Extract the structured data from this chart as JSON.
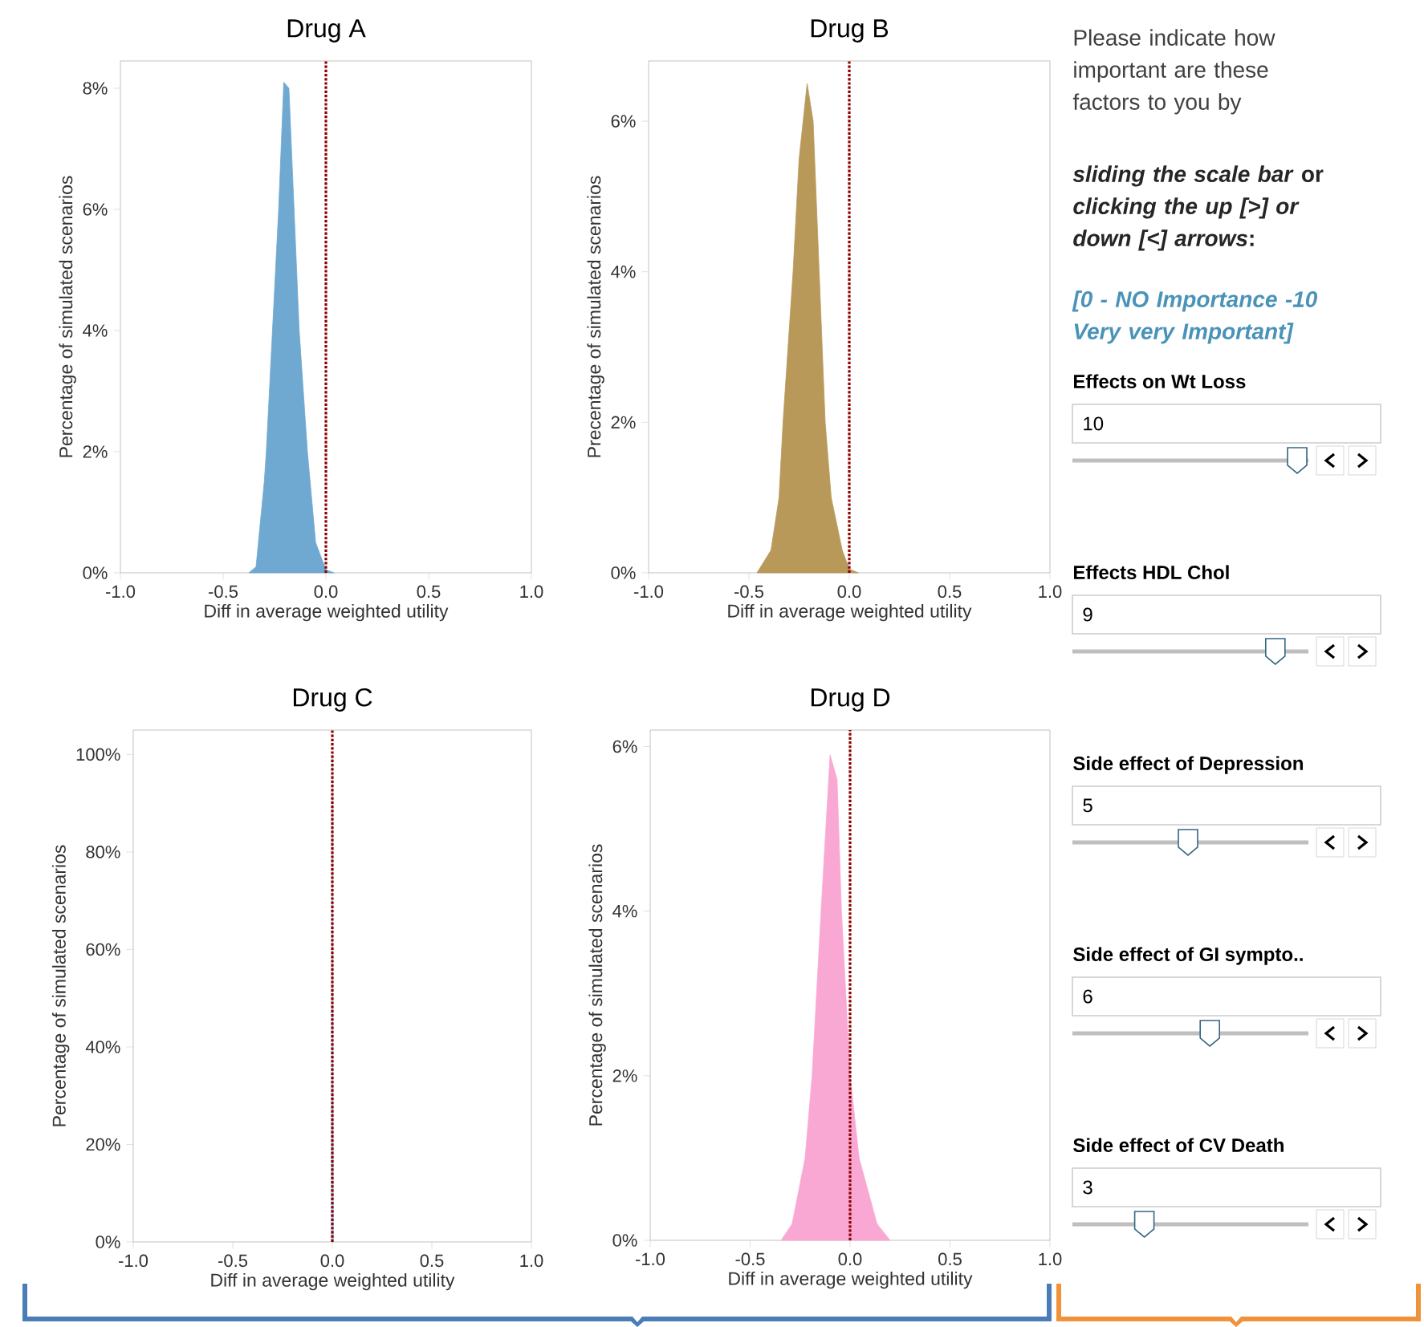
{
  "chart_data": [
    {
      "type": "area",
      "title": "Drug A",
      "xlabel": "Diff in average weighted utility",
      "ylabel": "Percentage of simulated scenarios",
      "x": [
        -0.375,
        -0.34,
        -0.3,
        -0.29,
        -0.26,
        -0.23,
        -0.205,
        -0.18,
        -0.155,
        -0.13,
        -0.09,
        -0.05,
        0.0,
        0.04
      ],
      "series": [
        {
          "color": "#6fa8d0",
          "values": [
            0,
            0.1,
            1.5,
            2,
            4,
            6,
            8.1,
            8.0,
            6,
            4,
            2,
            0.5,
            0.05,
            0
          ]
        }
      ],
      "xlim": [
        -1,
        1
      ],
      "ylim": [
        0,
        8.45
      ],
      "xticks": [
        {
          "value": -1,
          "label": "-1.0"
        },
        {
          "value": -0.5,
          "label": "-0.5"
        },
        {
          "value": 0,
          "label": "0.0"
        },
        {
          "value": 0.5,
          "label": "0.5"
        },
        {
          "value": 1,
          "label": "1.0"
        }
      ],
      "yticks": [
        {
          "value": 0,
          "label": "0%"
        },
        {
          "value": 2,
          "label": "2%"
        },
        {
          "value": 4,
          "label": "4%"
        },
        {
          "value": 6,
          "label": "6%"
        },
        {
          "value": 8,
          "label": "8%"
        }
      ],
      "ref_lines": [
        {
          "axis": "x",
          "value": 0,
          "color": "#8b0000",
          "line_style": "dotted"
        }
      ]
    },
    {
      "type": "area",
      "title": "Drug B",
      "xlabel": "Diff in average weighted utility",
      "ylabel": "Precentage of simulated scenarios",
      "x": [
        -0.46,
        -0.39,
        -0.35,
        -0.33,
        -0.28,
        -0.25,
        -0.21,
        -0.18,
        -0.15,
        -0.12,
        -0.09,
        -0.035,
        0.0,
        0.045
      ],
      "series": [
        {
          "color": "#b8995a",
          "values": [
            0,
            0.3,
            1,
            2,
            4,
            5.5,
            6.5,
            6,
            4,
            2,
            1,
            0.3,
            0.05,
            0
          ]
        }
      ],
      "xlim": [
        -1,
        1
      ],
      "ylim": [
        0,
        6.8
      ],
      "xticks": [
        {
          "value": -1,
          "label": "-1.0"
        },
        {
          "value": -0.5,
          "label": "-0.5"
        },
        {
          "value": 0,
          "label": "0.0"
        },
        {
          "value": 0.5,
          "label": "0.5"
        },
        {
          "value": 1,
          "label": "1.0"
        }
      ],
      "yticks": [
        {
          "value": 0,
          "label": "0%"
        },
        {
          "value": 2,
          "label": "2%"
        },
        {
          "value": 4,
          "label": "4%"
        },
        {
          "value": 6,
          "label": "6%"
        }
      ],
      "ref_lines": [
        {
          "axis": "x",
          "value": 0,
          "color": "#8b0000",
          "line_style": "dotted"
        }
      ]
    },
    {
      "type": "area",
      "title": "Drug C",
      "xlabel": "Diff in average weighted utility",
      "ylabel": "Percentage of simulated scenarios",
      "x": [
        -0.005,
        0,
        0.005
      ],
      "series": [
        {
          "color": "#aac8e4",
          "values": [
            0,
            100,
            0
          ]
        }
      ],
      "xlim": [
        -1,
        1
      ],
      "ylim": [
        0,
        105
      ],
      "xticks": [
        {
          "value": -1,
          "label": "-1.0"
        },
        {
          "value": -0.5,
          "label": "-0.5"
        },
        {
          "value": 0,
          "label": "0.0"
        },
        {
          "value": 0.5,
          "label": "0.5"
        },
        {
          "value": 1,
          "label": "1.0"
        }
      ],
      "yticks": [
        {
          "value": 0,
          "label": "0%"
        },
        {
          "value": 20,
          "label": "20%"
        },
        {
          "value": 40,
          "label": "40%"
        },
        {
          "value": 60,
          "label": "60%"
        },
        {
          "value": 80,
          "label": "80%"
        },
        {
          "value": 100,
          "label": "100%"
        }
      ],
      "ref_lines": [
        {
          "axis": "x",
          "value": 0,
          "color": "#8b0000",
          "line_style": "dotted"
        }
      ]
    },
    {
      "type": "area",
      "title": "Drug D",
      "xlabel": "Diff in average weighted utility",
      "ylabel": "Percentage of simulated scenarios",
      "x": [
        -0.345,
        -0.29,
        -0.225,
        -0.19,
        -0.145,
        -0.1,
        -0.065,
        -0.043,
        0.0,
        0.045,
        0.135,
        0.2
      ],
      "series": [
        {
          "color": "#f9a8d4",
          "values": [
            0,
            0.2,
            1,
            2,
            4,
            5.9,
            5.6,
            4,
            2,
            1,
            0.2,
            0
          ]
        }
      ],
      "xlim": [
        -1,
        1
      ],
      "ylim": [
        0,
        6.2
      ],
      "xticks": [
        {
          "value": -1,
          "label": "-1.0"
        },
        {
          "value": -0.5,
          "label": "-0.5"
        },
        {
          "value": 0,
          "label": "0.0"
        },
        {
          "value": 0.5,
          "label": "0.5"
        },
        {
          "value": 1,
          "label": "1.0"
        }
      ],
      "yticks": [
        {
          "value": 0,
          "label": "0%"
        },
        {
          "value": 2,
          "label": "2%"
        },
        {
          "value": 4,
          "label": "4%"
        },
        {
          "value": 6,
          "label": "6%"
        }
      ],
      "ref_lines": [
        {
          "axis": "x",
          "value": 0,
          "color": "#8b0000",
          "line_style": "dotted"
        }
      ]
    },
    {
      "type": "other",
      "title": "Please indicate how important are these factors to you by",
      "annotations": [
        "*sliding the scale bar* or *clicking the up [>] or down [<] arrows*:",
        "[0 - NO Importance -10 Very very Important]"
      ],
      "categories": [
        "Effects on Wt Loss",
        "Effects HDL Chol",
        "Side effect of Depression",
        "Side effect of GI sympto..",
        "Side effect of CV Death"
      ],
      "values": [
        10,
        9,
        5,
        6,
        3
      ],
      "value_labels": [
        "10",
        "9",
        "5",
        "6",
        "3"
      ]
    }
  ]
}
